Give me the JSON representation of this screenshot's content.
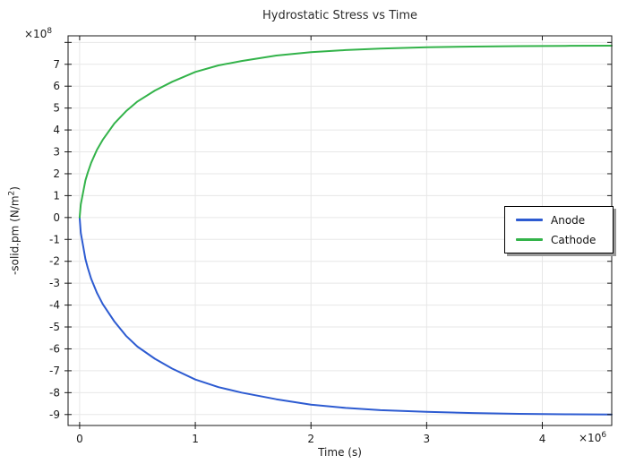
{
  "chart_data": {
    "type": "line",
    "title": "Hydrostatic Stress vs Time",
    "xlabel": "Time (s)",
    "ylabel": "-solid.pm (N/m²)",
    "ylabel_pre": "-solid.pm (N/m",
    "ylabel_sup": "2",
    "ylabel_post": ")",
    "x_multiplier_base": "×10",
    "x_multiplier_exp": "6",
    "y_multiplier_base": "×10",
    "y_multiplier_exp": "8",
    "x_units_note": "x values in 1e6 s",
    "y_units_note": "y values in 1e8 N/m^2",
    "xlim": [
      -0.1,
      4.6
    ],
    "ylim": [
      -9.5,
      8.3
    ],
    "xticks": [
      0,
      1,
      2,
      3,
      4
    ],
    "xtick_labels": [
      "0",
      "1",
      "2",
      "3",
      "4"
    ],
    "yticks": [
      8,
      7,
      6,
      5,
      4,
      3,
      2,
      1,
      0,
      -1,
      -2,
      -3,
      -4,
      -5,
      -6,
      -7,
      -8,
      -9
    ],
    "ytick_labels": [
      "",
      "7",
      "6",
      "5",
      "4",
      "3",
      "2",
      "1",
      "0",
      "-1",
      "-2",
      "-3",
      "-4",
      "-5",
      "-6",
      "-7",
      "-8",
      "-9"
    ],
    "grid": true,
    "grid_color": "#e7e7e7",
    "frame_color": "#1a1a1a",
    "legend_position": "right-middle",
    "x": [
      0,
      0.01,
      0.03,
      0.05,
      0.07,
      0.1,
      0.15,
      0.2,
      0.3,
      0.4,
      0.5,
      0.65,
      0.8,
      1.0,
      1.2,
      1.4,
      1.7,
      2.0,
      2.3,
      2.6,
      3.0,
      3.4,
      3.8,
      4.2,
      4.6
    ],
    "series": [
      {
        "name": "Anode",
        "color": "#2d5bd1",
        "values": [
          0,
          -0.7,
          -1.3,
          -1.9,
          -2.3,
          -2.8,
          -3.45,
          -3.95,
          -4.75,
          -5.4,
          -5.9,
          -6.45,
          -6.9,
          -7.4,
          -7.75,
          -8.0,
          -8.3,
          -8.55,
          -8.7,
          -8.8,
          -8.88,
          -8.93,
          -8.97,
          -8.99,
          -9.0
        ]
      },
      {
        "name": "Cathode",
        "color": "#33b34a",
        "values": [
          0,
          0.6,
          1.15,
          1.7,
          2.05,
          2.5,
          3.1,
          3.55,
          4.3,
          4.85,
          5.3,
          5.8,
          6.2,
          6.65,
          6.95,
          7.15,
          7.4,
          7.55,
          7.65,
          7.72,
          7.78,
          7.81,
          7.83,
          7.84,
          7.85
        ]
      }
    ]
  }
}
